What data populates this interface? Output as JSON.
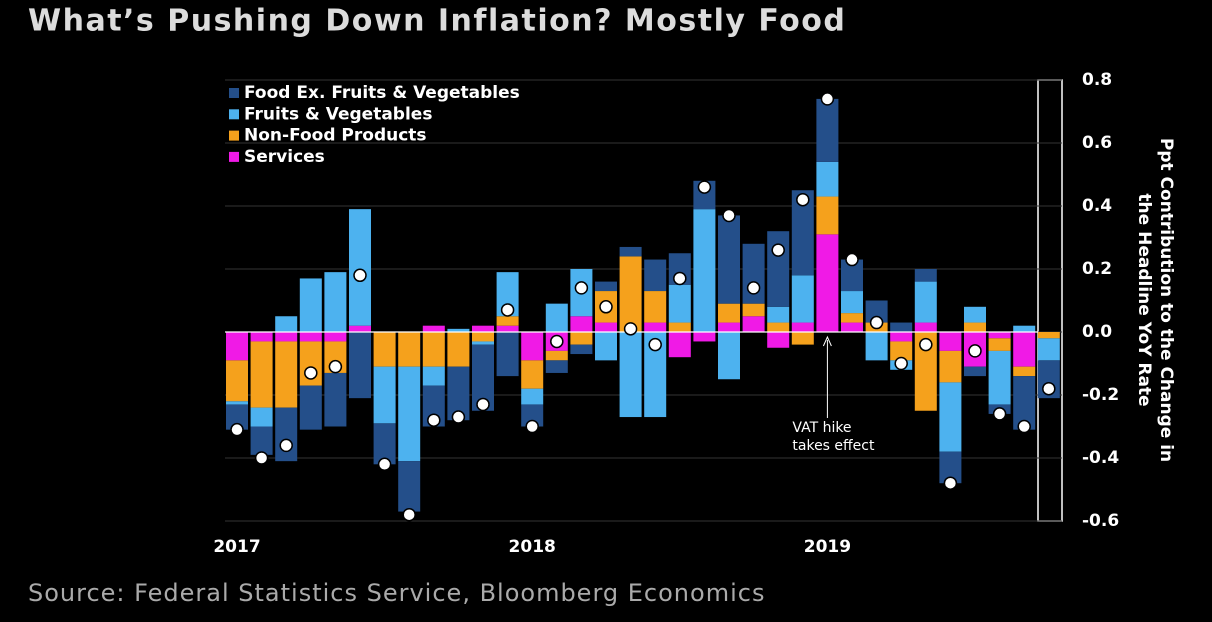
{
  "chart_data": {
    "type": "stacked_bar",
    "title": "What’s Pushing Down Inflation? Mostly Food",
    "source": "Source: Federal Statistics Service, Bloomberg Economics",
    "y_label": [
      "Ppt Contribution to the Change in",
      "the Headline YoY Rate"
    ],
    "annotation": {
      "text": [
        "VAT hike",
        "takes effect"
      ],
      "index": 24
    },
    "categories": [
      "2017",
      null,
      null,
      null,
      null,
      null,
      null,
      null,
      null,
      null,
      null,
      null,
      "2018",
      null,
      null,
      null,
      null,
      null,
      null,
      null,
      null,
      null,
      null,
      null,
      "2019",
      null,
      null,
      null,
      null,
      null,
      null,
      null,
      null,
      null
    ],
    "series": [
      {
        "name": "Food Ex. Fruits & Vegetables",
        "color": "#244f8a",
        "values": [
          -0.08,
          -0.09,
          -0.17,
          -0.14,
          -0.17,
          -0.21,
          -0.13,
          -0.16,
          -0.13,
          -0.17,
          -0.21,
          -0.14,
          -0.07,
          -0.04,
          -0.03,
          0.03,
          0.03,
          0.1,
          0.1,
          0.09,
          0.28,
          0.19,
          0.24,
          0.27,
          0.2,
          0.1,
          0.07,
          0.03,
          0.04,
          -0.1,
          -0.03,
          -0.03,
          -0.17,
          -0.12
        ]
      },
      {
        "name": "Fruits & Vegetables",
        "color": "#4db2ef",
        "values": [
          -0.01,
          -0.06,
          0.05,
          0.17,
          0.19,
          0.37,
          -0.18,
          -0.3,
          -0.06,
          0.01,
          -0.01,
          0.14,
          -0.05,
          0.09,
          0.15,
          -0.09,
          -0.27,
          -0.27,
          0.12,
          0.39,
          -0.15,
          0,
          0.05,
          0.15,
          0.11,
          0.07,
          -0.09,
          -0.03,
          0.13,
          -0.22,
          0.05,
          -0.17,
          0.02,
          -0.07
        ]
      },
      {
        "name": "Non-Food Products",
        "color": "#f5a11c",
        "values": [
          -0.13,
          -0.21,
          -0.21,
          -0.14,
          -0.1,
          0,
          -0.11,
          -0.11,
          -0.11,
          -0.11,
          -0.03,
          0.03,
          -0.09,
          -0.03,
          -0.04,
          0.1,
          0.24,
          0.1,
          0.03,
          0,
          0.06,
          0.04,
          0.03,
          -0.04,
          0.12,
          0.03,
          0.03,
          -0.06,
          -0.25,
          -0.1,
          0.03,
          -0.04,
          -0.03,
          -0.02
        ]
      },
      {
        "name": "Services",
        "color": "#f01ae6",
        "values": [
          -0.09,
          -0.03,
          -0.03,
          -0.03,
          -0.03,
          0.02,
          0,
          0,
          0.02,
          0,
          0.02,
          0.02,
          -0.09,
          -0.06,
          0.05,
          0.03,
          0,
          0.03,
          -0.08,
          -0.03,
          0.03,
          0.05,
          -0.05,
          0.03,
          0.31,
          0.03,
          0,
          -0.03,
          0.03,
          -0.06,
          -0.11,
          -0.02,
          -0.11,
          0
        ]
      }
    ],
    "points": [
      -0.31,
      -0.4,
      -0.36,
      -0.13,
      -0.11,
      0.18,
      -0.42,
      -0.58,
      -0.28,
      -0.27,
      -0.23,
      0.07,
      -0.3,
      -0.03,
      0.14,
      0.08,
      0.01,
      -0.04,
      0.17,
      0.46,
      0.37,
      0.14,
      0.26,
      0.42,
      0.74,
      0.23,
      0.03,
      -0.1,
      -0.04,
      -0.48,
      -0.06,
      -0.26,
      -0.3,
      -0.18
    ],
    "ylim": [
      -0.6,
      0.8
    ],
    "yticks": [
      0.8,
      0.6,
      0.4,
      0.2,
      {
        "value": 0,
        "label": "0.0"
      },
      -0.2,
      -0.4,
      -0.6
    ],
    "grid": true,
    "legend": "upper left"
  }
}
